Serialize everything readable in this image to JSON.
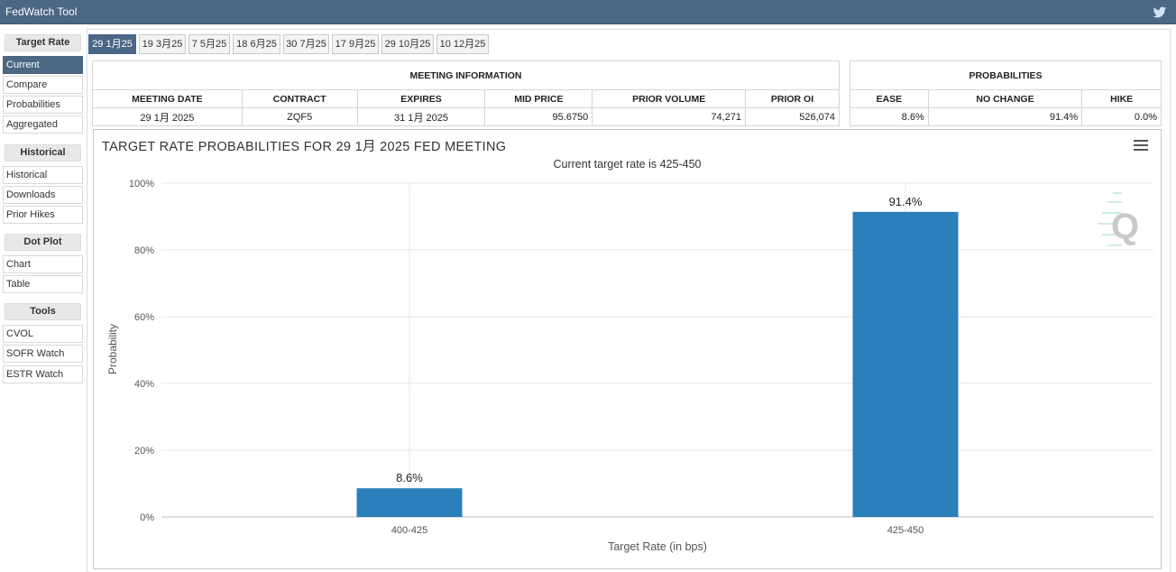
{
  "app": {
    "title": "FedWatch Tool"
  },
  "sidebar": {
    "sections": [
      {
        "header": "Target Rate",
        "items": [
          "Current",
          "Compare",
          "Probabilities",
          "Aggregated"
        ]
      },
      {
        "header": "Historical",
        "items": [
          "Historical",
          "Downloads",
          "Prior Hikes"
        ]
      },
      {
        "header": "Dot Plot",
        "items": [
          "Chart",
          "Table"
        ]
      },
      {
        "header": "Tools",
        "items": [
          "CVOL",
          "SOFR Watch",
          "ESTR Watch"
        ]
      }
    ],
    "active_item": "Current"
  },
  "tabs": [
    "29 1月25",
    "19 3月25",
    "7 5月25",
    "18 6月25",
    "30 7月25",
    "17 9月25",
    "29 10月25",
    "10 12月25"
  ],
  "meeting_info": {
    "header": "MEETING INFORMATION",
    "columns": [
      "MEETING DATE",
      "CONTRACT",
      "EXPIRES",
      "MID PRICE",
      "PRIOR VOLUME",
      "PRIOR OI"
    ],
    "row": [
      "29 1月 2025",
      "ZQF5",
      "31 1月 2025",
      "95.6750",
      "74,271",
      "526,074"
    ]
  },
  "probabilities": {
    "header": "PROBABILITIES",
    "columns": [
      "EASE",
      "NO CHANGE",
      "HIKE"
    ],
    "row": [
      "8.6%",
      "91.4%",
      "0.0%"
    ]
  },
  "chart_data": {
    "type": "bar",
    "title": "TARGET RATE PROBABILITIES FOR 29 1月 2025 FED MEETING",
    "subtitle": "Current target rate is 425-450",
    "xlabel": "Target Rate (in bps)",
    "ylabel": "Probability",
    "categories": [
      "400-425",
      "425-450"
    ],
    "values": [
      8.6,
      91.4
    ],
    "data_labels": [
      "8.6%",
      "91.4%"
    ],
    "ylim": [
      0,
      100
    ],
    "yticks": [
      "0%",
      "20%",
      "40%",
      "60%",
      "80%",
      "100%"
    ],
    "bar_color": "#2b7fbb",
    "grid": true
  }
}
